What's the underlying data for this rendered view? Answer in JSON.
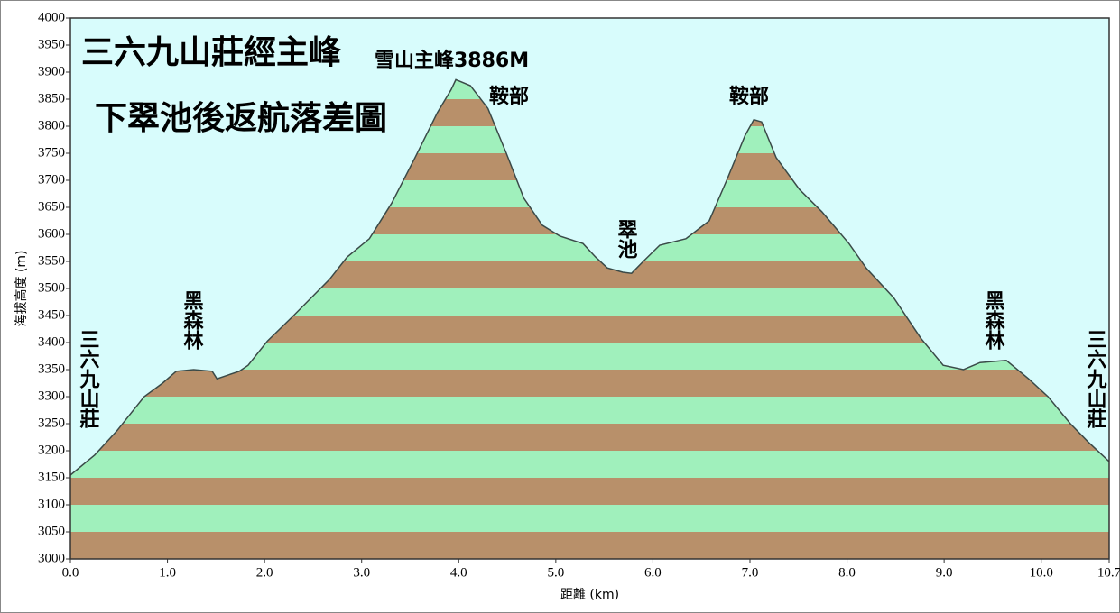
{
  "chart_data": {
    "type": "area-profile",
    "title_lines": [
      "三六九山莊經主峰",
      "下翠池後返航落差圖"
    ],
    "x_label": "距離 (km)",
    "y_label": "海拔高度 (m)",
    "x": [
      0,
      0.25,
      0.48,
      0.76,
      0.95,
      1.09,
      1.27,
      1.46,
      1.51,
      1.74,
      1.83,
      2.03,
      2.3,
      2.67,
      2.85,
      3.08,
      3.31,
      3.55,
      3.78,
      3.92,
      3.97,
      4.12,
      4.3,
      4.49,
      4.67,
      4.86,
      5.04,
      5.28,
      5.41,
      5.53,
      5.69,
      5.78,
      5.9,
      6.07,
      6.34,
      6.58,
      6.76,
      6.95,
      7.04,
      7.12,
      7.27,
      7.51,
      7.74,
      8.02,
      8.2,
      8.48,
      8.76,
      8.99,
      9.2,
      9.37,
      9.64,
      9.87,
      10.07,
      10.3,
      10.48,
      10.7
    ],
    "values": [
      3155,
      3192,
      3237,
      3300,
      3325,
      3347,
      3350,
      3347,
      3333,
      3347,
      3358,
      3403,
      3450,
      3517,
      3558,
      3592,
      3658,
      3742,
      3825,
      3867,
      3886,
      3875,
      3833,
      3750,
      3667,
      3617,
      3597,
      3583,
      3558,
      3538,
      3530,
      3528,
      3550,
      3580,
      3592,
      3625,
      3700,
      3783,
      3812,
      3808,
      3742,
      3683,
      3642,
      3583,
      3537,
      3483,
      3408,
      3358,
      3350,
      3363,
      3367,
      3333,
      3300,
      3250,
      3217,
      3180
    ],
    "line_color": "#3a4a48",
    "background": "#d8fcfc",
    "band_colors": [
      "#b8906a",
      "#a0f0bc"
    ],
    "xlim": [
      0,
      10.7
    ],
    "ylim": [
      3000,
      4000
    ],
    "xticks": [
      {
        "value": 0,
        "label": "0.0"
      },
      {
        "value": 1,
        "label": "1.0"
      },
      {
        "value": 2,
        "label": "2.0"
      },
      {
        "value": 3,
        "label": "3.0"
      },
      {
        "value": 4,
        "label": "4.0"
      },
      {
        "value": 5,
        "label": "5.0"
      },
      {
        "value": 6,
        "label": "6.0"
      },
      {
        "value": 7,
        "label": "7.0"
      },
      {
        "value": 8,
        "label": "8.0"
      },
      {
        "value": 9,
        "label": "9.0"
      },
      {
        "value": 10,
        "label": "10.0"
      },
      10.7
    ],
    "yticks": [
      3000,
      3050,
      3100,
      3150,
      3200,
      3250,
      3300,
      3350,
      3400,
      3450,
      3500,
      3550,
      3600,
      3650,
      3700,
      3750,
      3800,
      3850,
      3900,
      3950,
      4000
    ],
    "annotations": [
      "雪山主峰3886M",
      "鞍部",
      "鞍部",
      "翠池",
      "黑森林",
      "黑森林",
      "三六九山莊",
      "三六九山莊"
    ]
  }
}
